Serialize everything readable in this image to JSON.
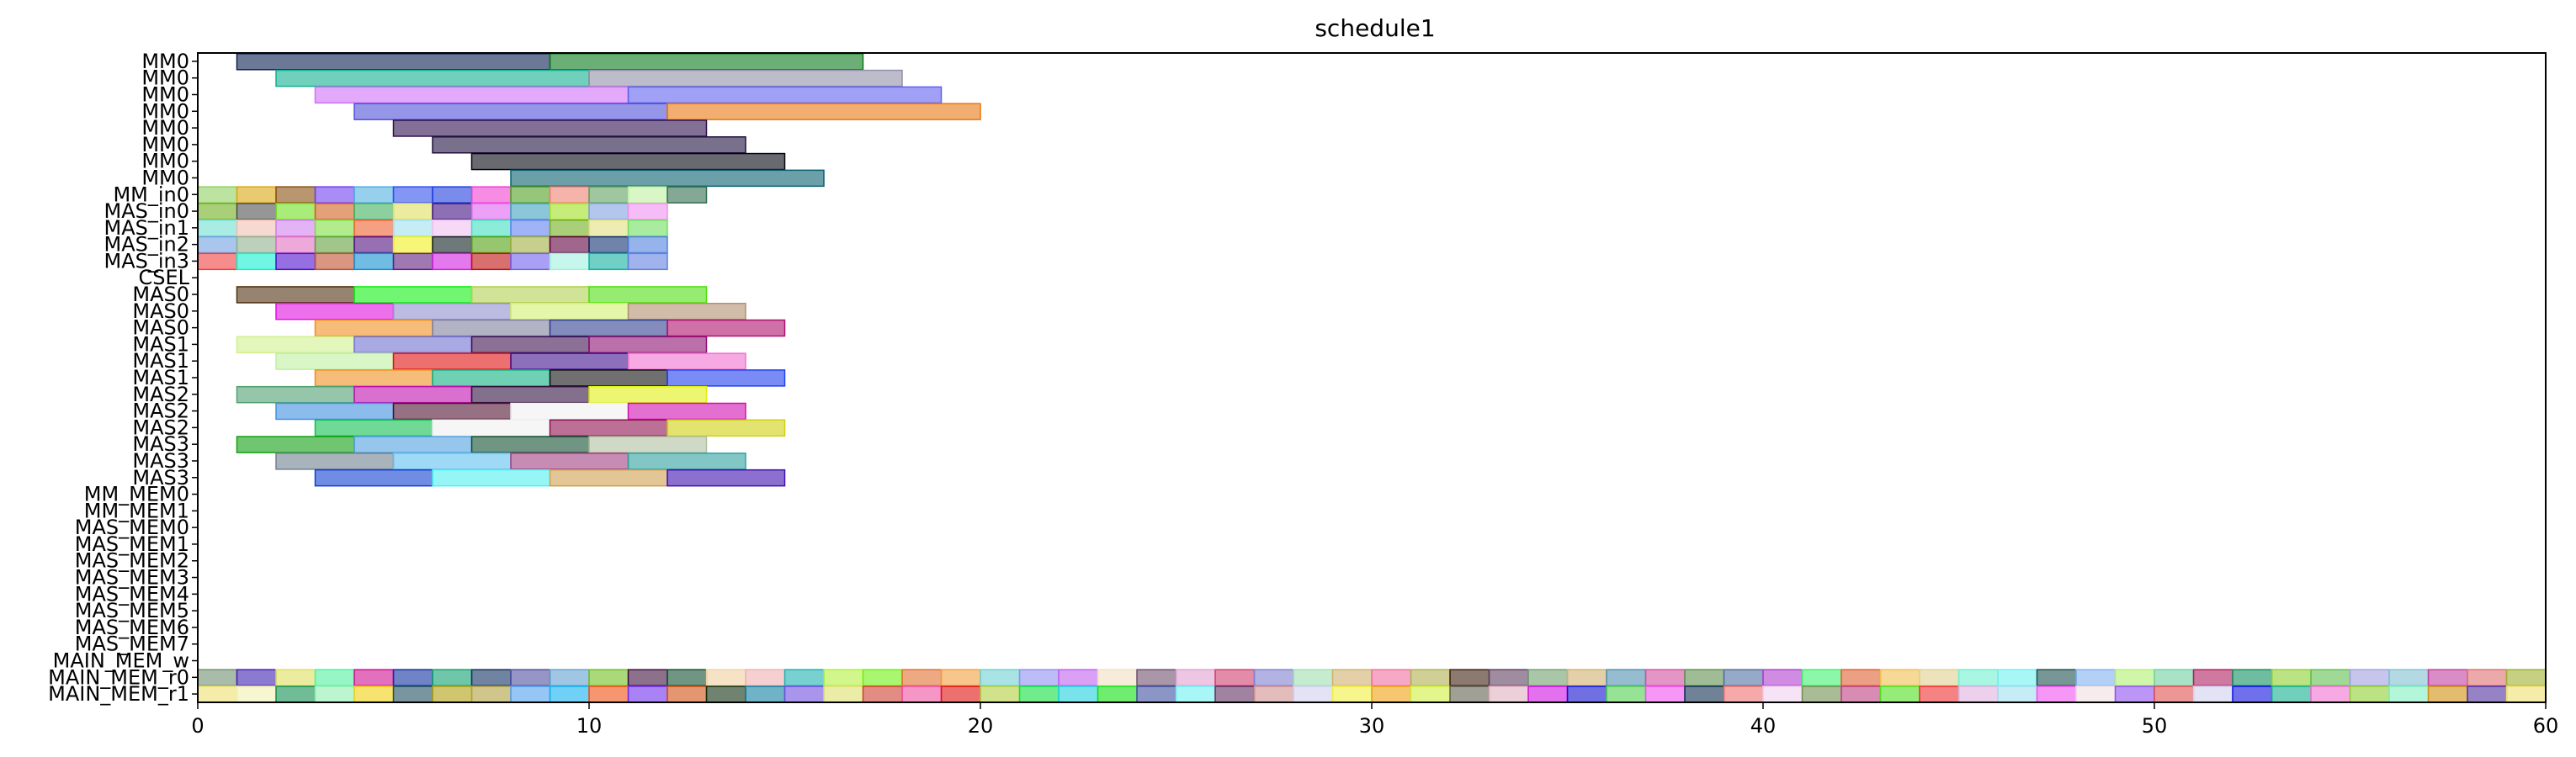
{
  "chart_data": {
    "type": "gantt",
    "title": "schedule1",
    "xlim": [
      0,
      60
    ],
    "x_ticks": [
      0,
      10,
      20,
      30,
      40,
      50,
      60
    ],
    "grid": false,
    "legend": "none",
    "bar_alpha": 0.6,
    "row_labels": [
      "MM0",
      "MM0",
      "MM0",
      "MM0",
      "MM0",
      "MM0",
      "MM0",
      "MM0",
      "MM_in0",
      "MAS_in0",
      "MAS_in1",
      "MAS_in2",
      "MAS_in3",
      "CSEL",
      "MAS0",
      "MAS0",
      "MAS0",
      "MAS1",
      "MAS1",
      "MAS1",
      "MAS2",
      "MAS2",
      "MAS2",
      "MAS3",
      "MAS3",
      "MAS3",
      "MM_MEM0",
      "MM_MEM1",
      "MAS_MEM0",
      "MAS_MEM1",
      "MAS_MEM2",
      "MAS_MEM3",
      "MAS_MEM4",
      "MAS_MEM5",
      "MAS_MEM6",
      "MAS_MEM7",
      "MAIN_MEM_w",
      "MAIN_MEM_r0",
      "MAIN_MEM_r1"
    ],
    "tasks": [
      {
        "row": 0,
        "start": 1,
        "end": 9,
        "color": "#0a2050"
      },
      {
        "row": 0,
        "start": 9,
        "end": 17,
        "color": "#0a7a1a"
      },
      {
        "row": 1,
        "start": 2,
        "end": 10,
        "color": "#10b090"
      },
      {
        "row": 1,
        "start": 10,
        "end": 18,
        "color": "#9090a8"
      },
      {
        "row": 2,
        "start": 3,
        "end": 11,
        "color": "#d070f8"
      },
      {
        "row": 2,
        "start": 11,
        "end": 19,
        "color": "#6060f0"
      },
      {
        "row": 3,
        "start": 4,
        "end": 12,
        "color": "#5050d8"
      },
      {
        "row": 3,
        "start": 12,
        "end": 20,
        "color": "#e87810"
      },
      {
        "row": 4,
        "start": 5,
        "end": 13,
        "color": "#301050"
      },
      {
        "row": 5,
        "start": 6,
        "end": 14,
        "color": "#201040"
      },
      {
        "row": 6,
        "start": 7,
        "end": 15,
        "color": "#050510"
      },
      {
        "row": 7,
        "start": 8,
        "end": 16,
        "color": "#086070"
      },
      {
        "row": 8,
        "start": 0,
        "end": 1,
        "color": "#90d060"
      },
      {
        "row": 8,
        "start": 1,
        "end": 2,
        "color": "#d8a810"
      },
      {
        "row": 8,
        "start": 2,
        "end": 3,
        "color": "#8a5010"
      },
      {
        "row": 8,
        "start": 3,
        "end": 4,
        "color": "#7040f0"
      },
      {
        "row": 8,
        "start": 4,
        "end": 5,
        "color": "#50b0e0"
      },
      {
        "row": 8,
        "start": 5,
        "end": 6,
        "color": "#3050f0"
      },
      {
        "row": 8,
        "start": 6,
        "end": 7,
        "color": "#2040e0"
      },
      {
        "row": 8,
        "start": 7,
        "end": 8,
        "color": "#f040d0"
      },
      {
        "row": 8,
        "start": 8,
        "end": 9,
        "color": "#50a020"
      },
      {
        "row": 8,
        "start": 9,
        "end": 10,
        "color": "#f08070"
      },
      {
        "row": 8,
        "start": 10,
        "end": 11,
        "color": "#60a060"
      },
      {
        "row": 8,
        "start": 11,
        "end": 12,
        "color": "#c0f0a0"
      },
      {
        "row": 8,
        "start": 12,
        "end": 13,
        "color": "#307050"
      },
      {
        "row": 9,
        "start": 0,
        "end": 1,
        "color": "#70b020"
      },
      {
        "row": 9,
        "start": 1,
        "end": 2,
        "color": "#505050"
      },
      {
        "row": 9,
        "start": 2,
        "end": 3,
        "color": "#70e020"
      },
      {
        "row": 9,
        "start": 3,
        "end": 4,
        "color": "#d06020"
      },
      {
        "row": 9,
        "start": 4,
        "end": 5,
        "color": "#40b060"
      },
      {
        "row": 9,
        "start": 5,
        "end": 6,
        "color": "#e0e060"
      },
      {
        "row": 9,
        "start": 6,
        "end": 7,
        "color": "#401080"
      },
      {
        "row": 9,
        "start": 7,
        "end": 8,
        "color": "#e060f0"
      },
      {
        "row": 9,
        "start": 8,
        "end": 9,
        "color": "#40a0c0"
      },
      {
        "row": 9,
        "start": 9,
        "end": 10,
        "color": "#a0e020"
      },
      {
        "row": 9,
        "start": 10,
        "end": 11,
        "color": "#80a0e0"
      },
      {
        "row": 9,
        "start": 11,
        "end": 12,
        "color": "#f090f0"
      },
      {
        "row": 10,
        "start": 0,
        "end": 1,
        "color": "#70e0d0"
      },
      {
        "row": 10,
        "start": 1,
        "end": 2,
        "color": "#f0c0b0"
      },
      {
        "row": 10,
        "start": 2,
        "end": 3,
        "color": "#d080f0"
      },
      {
        "row": 10,
        "start": 3,
        "end": 4,
        "color": "#80e040"
      },
      {
        "row": 10,
        "start": 4,
        "end": 5,
        "color": "#f06030"
      },
      {
        "row": 10,
        "start": 5,
        "end": 6,
        "color": "#a0e0f0"
      },
      {
        "row": 10,
        "start": 6,
        "end": 7,
        "color": "#f0c0f0"
      },
      {
        "row": 10,
        "start": 7,
        "end": 8,
        "color": "#40e0c0"
      },
      {
        "row": 10,
        "start": 8,
        "end": 9,
        "color": "#6080f0"
      },
      {
        "row": 10,
        "start": 9,
        "end": 10,
        "color": "#70b020"
      },
      {
        "row": 10,
        "start": 10,
        "end": 11,
        "color": "#e0e080"
      },
      {
        "row": 10,
        "start": 11,
        "end": 12,
        "color": "#70e060"
      },
      {
        "row": 11,
        "start": 0,
        "end": 1,
        "color": "#70a0e0"
      },
      {
        "row": 11,
        "start": 1,
        "end": 2,
        "color": "#90b090"
      },
      {
        "row": 11,
        "start": 2,
        "end": 3,
        "color": "#e070c0"
      },
      {
        "row": 11,
        "start": 3,
        "end": 4,
        "color": "#60a040"
      },
      {
        "row": 11,
        "start": 4,
        "end": 5,
        "color": "#501080"
      },
      {
        "row": 11,
        "start": 5,
        "end": 6,
        "color": "#f0f020"
      },
      {
        "row": 11,
        "start": 6,
        "end": 7,
        "color": "#102020"
      },
      {
        "row": 11,
        "start": 7,
        "end": 8,
        "color": "#50a010"
      },
      {
        "row": 11,
        "start": 8,
        "end": 9,
        "color": "#a0b040"
      },
      {
        "row": 11,
        "start": 9,
        "end": 10,
        "color": "#600040"
      },
      {
        "row": 11,
        "start": 10,
        "end": 11,
        "color": "#103070"
      },
      {
        "row": 11,
        "start": 11,
        "end": 12,
        "color": "#5080e0"
      },
      {
        "row": 12,
        "start": 0,
        "end": 1,
        "color": "#f04040"
      },
      {
        "row": 12,
        "start": 1,
        "end": 2,
        "color": "#10f0d0"
      },
      {
        "row": 12,
        "start": 2,
        "end": 3,
        "color": "#5010d0"
      },
      {
        "row": 12,
        "start": 3,
        "end": 4,
        "color": "#c05030"
      },
      {
        "row": 12,
        "start": 4,
        "end": 5,
        "color": "#1090d0"
      },
      {
        "row": 12,
        "start": 5,
        "end": 6,
        "color": "#602080"
      },
      {
        "row": 12,
        "start": 6,
        "end": 7,
        "color": "#d020e0"
      },
      {
        "row": 12,
        "start": 7,
        "end": 8,
        "color": "#c01010"
      },
      {
        "row": 12,
        "start": 8,
        "end": 9,
        "color": "#7060f0"
      },
      {
        "row": 12,
        "start": 9,
        "end": 10,
        "color": "#a0f0e0"
      },
      {
        "row": 12,
        "start": 10,
        "end": 11,
        "color": "#10b0a0"
      },
      {
        "row": 12,
        "start": 11,
        "end": 12,
        "color": "#6080e0"
      },
      {
        "row": 14,
        "start": 1,
        "end": 4,
        "color": "#503010"
      },
      {
        "row": 14,
        "start": 4,
        "end": 7,
        "color": "#10f010"
      },
      {
        "row": 14,
        "start": 7,
        "end": 10,
        "color": "#b0d050"
      },
      {
        "row": 14,
        "start": 10,
        "end": 13,
        "color": "#50e010"
      },
      {
        "row": 15,
        "start": 2,
        "end": 5,
        "color": "#e010e0"
      },
      {
        "row": 15,
        "start": 5,
        "end": 8,
        "color": "#9090d0"
      },
      {
        "row": 15,
        "start": 8,
        "end": 11,
        "color": "#d0f070"
      },
      {
        "row": 15,
        "start": 11,
        "end": 14,
        "color": "#b09070"
      },
      {
        "row": 16,
        "start": 3,
        "end": 6,
        "color": "#f09020"
      },
      {
        "row": 16,
        "start": 6,
        "end": 9,
        "color": "#8080a0"
      },
      {
        "row": 16,
        "start": 9,
        "end": 12,
        "color": "#304090"
      },
      {
        "row": 16,
        "start": 12,
        "end": 15,
        "color": "#b01070"
      },
      {
        "row": 17,
        "start": 1,
        "end": 4,
        "color": "#d0f090"
      },
      {
        "row": 17,
        "start": 4,
        "end": 7,
        "color": "#7070d0"
      },
      {
        "row": 17,
        "start": 7,
        "end": 10,
        "color": "#401050"
      },
      {
        "row": 17,
        "start": 10,
        "end": 13,
        "color": "#901070"
      },
      {
        "row": 18,
        "start": 2,
        "end": 5,
        "color": "#c0f0a0"
      },
      {
        "row": 18,
        "start": 5,
        "end": 8,
        "color": "#e01010"
      },
      {
        "row": 18,
        "start": 8,
        "end": 11,
        "color": "#401090"
      },
      {
        "row": 18,
        "start": 11,
        "end": 14,
        "color": "#f070d0"
      },
      {
        "row": 19,
        "start": 3,
        "end": 6,
        "color": "#f09020"
      },
      {
        "row": 19,
        "start": 6,
        "end": 9,
        "color": "#10b080"
      },
      {
        "row": 19,
        "start": 9,
        "end": 12,
        "color": "#101010"
      },
      {
        "row": 19,
        "start": 12,
        "end": 15,
        "color": "#2040f0"
      },
      {
        "row": 20,
        "start": 1,
        "end": 4,
        "color": "#50a070"
      },
      {
        "row": 20,
        "start": 4,
        "end": 7,
        "color": "#c010b0"
      },
      {
        "row": 20,
        "start": 7,
        "end": 10,
        "color": "#301040"
      },
      {
        "row": 20,
        "start": 10,
        "end": 13,
        "color": "#e0f010"
      },
      {
        "row": 21,
        "start": 2,
        "end": 5,
        "color": "#4090e0"
      },
      {
        "row": 21,
        "start": 5,
        "end": 8,
        "color": "#501030"
      },
      {
        "row": 21,
        "start": 8,
        "end": 11,
        "color": "#f0f0f0"
      },
      {
        "row": 21,
        "start": 11,
        "end": 14,
        "color": "#d010b0"
      },
      {
        "row": 22,
        "start": 3,
        "end": 6,
        "color": "#10c050"
      },
      {
        "row": 22,
        "start": 6,
        "end": 9,
        "color": "#f0f0f0"
      },
      {
        "row": 22,
        "start": 9,
        "end": 12,
        "color": "#901050"
      },
      {
        "row": 22,
        "start": 12,
        "end": 15,
        "color": "#d0d010"
      },
      {
        "row": 23,
        "start": 1,
        "end": 4,
        "color": "#10a010"
      },
      {
        "row": 23,
        "start": 4,
        "end": 7,
        "color": "#50a0e0"
      },
      {
        "row": 23,
        "start": 7,
        "end": 10,
        "color": "#105030"
      },
      {
        "row": 23,
        "start": 10,
        "end": 13,
        "color": "#b0c0a0"
      },
      {
        "row": 24,
        "start": 2,
        "end": 5,
        "color": "#708090"
      },
      {
        "row": 24,
        "start": 5,
        "end": 8,
        "color": "#60c0f0"
      },
      {
        "row": 24,
        "start": 8,
        "end": 11,
        "color": "#a04080"
      },
      {
        "row": 24,
        "start": 11,
        "end": 14,
        "color": "#30a0a0"
      },
      {
        "row": 25,
        "start": 3,
        "end": 6,
        "color": "#1040d0"
      },
      {
        "row": 25,
        "start": 6,
        "end": 9,
        "color": "#50f0f0"
      },
      {
        "row": 25,
        "start": 9,
        "end": 12,
        "color": "#d0a050"
      },
      {
        "row": 25,
        "start": 12,
        "end": 15,
        "color": "#4010b0"
      }
    ],
    "strips": [
      {
        "row": 37,
        "colors": [
          "#709070",
          "#4020b0",
          "#e0e060",
          "#50f0a0",
          "#d01090",
          "#1030a0",
          "#10a070",
          "#103060",
          "#5050a0",
          "#60a0d0",
          "#70c020",
          "#401040",
          "#105030",
          "#f0d0a0",
          "#f0b0b0",
          "#20b0b0",
          "#b0f040",
          "#70f010",
          "#e07030",
          "#f0a040",
          "#70d0d0",
          "#9090f0",
          "#c060f0",
          "#f0e0c0",
          "#705070",
          "#e0a0d0",
          "#d04070",
          "#8080d0",
          "#a0e0b0",
          "#d0b070",
          "#f070a0",
          "#b0b050",
          "#402010",
          "#604060",
          "#70a070",
          "#d0b070",
          "#5090b0",
          "#d050a0",
          "#609050",
          "#5070a0",
          "#b040d0",
          "#40f070",
          "#e06030",
          "#f0c050",
          "#e0d090",
          "#70f0d0",
          "#70f0f0",
          "#205050",
          "#80b0f0",
          "#b0f070",
          "#70d0a0",
          "#b02060",
          "#109060",
          "#90d030",
          "#60c050",
          "#a0a0e0",
          "#80c0d0",
          "#c040a0",
          "#e07070",
          "#a0b030"
        ]
      },
      {
        "row": 38,
        "colors": [
          "#f0e070",
          "#f0f0b0",
          "#109050",
          "#90f0b0",
          "#f0d010",
          "#205060",
          "#b0a010",
          "#b0a040",
          "#50a0f0",
          "#10b0f0",
          "#f05010",
          "#7030f0",
          "#d05010",
          "#103010",
          "#1080a0",
          "#7050e0",
          "#e0e070",
          "#d04030",
          "#f050a0",
          "#e01010",
          "#b0d040",
          "#10e040",
          "#20d0e0",
          "#10e010",
          "#4050a0",
          "#70f0f0",
          "#603060",
          "#d09090",
          "#d0d0f0",
          "#f0f040",
          "#f0a010",
          "#d0f040",
          "#606050",
          "#e0b0c0",
          "#d010e0",
          "#1010d0",
          "#50d050",
          "#f050f0",
          "#103050",
          "#f07070",
          "#f0d0f0",
          "#709050",
          "#c04080",
          "#50e020",
          "#f03030",
          "#e0b0e0",
          "#a0e0f0",
          "#f050f0",
          "#f0e0e0",
          "#9050f0",
          "#e05050",
          "#d0d0f0",
          "#1010e0",
          "#10b090",
          "#f070d0",
          "#90d030",
          "#80f0c0",
          "#d09010",
          "#5030a0",
          "#f0e070"
        ]
      }
    ]
  }
}
